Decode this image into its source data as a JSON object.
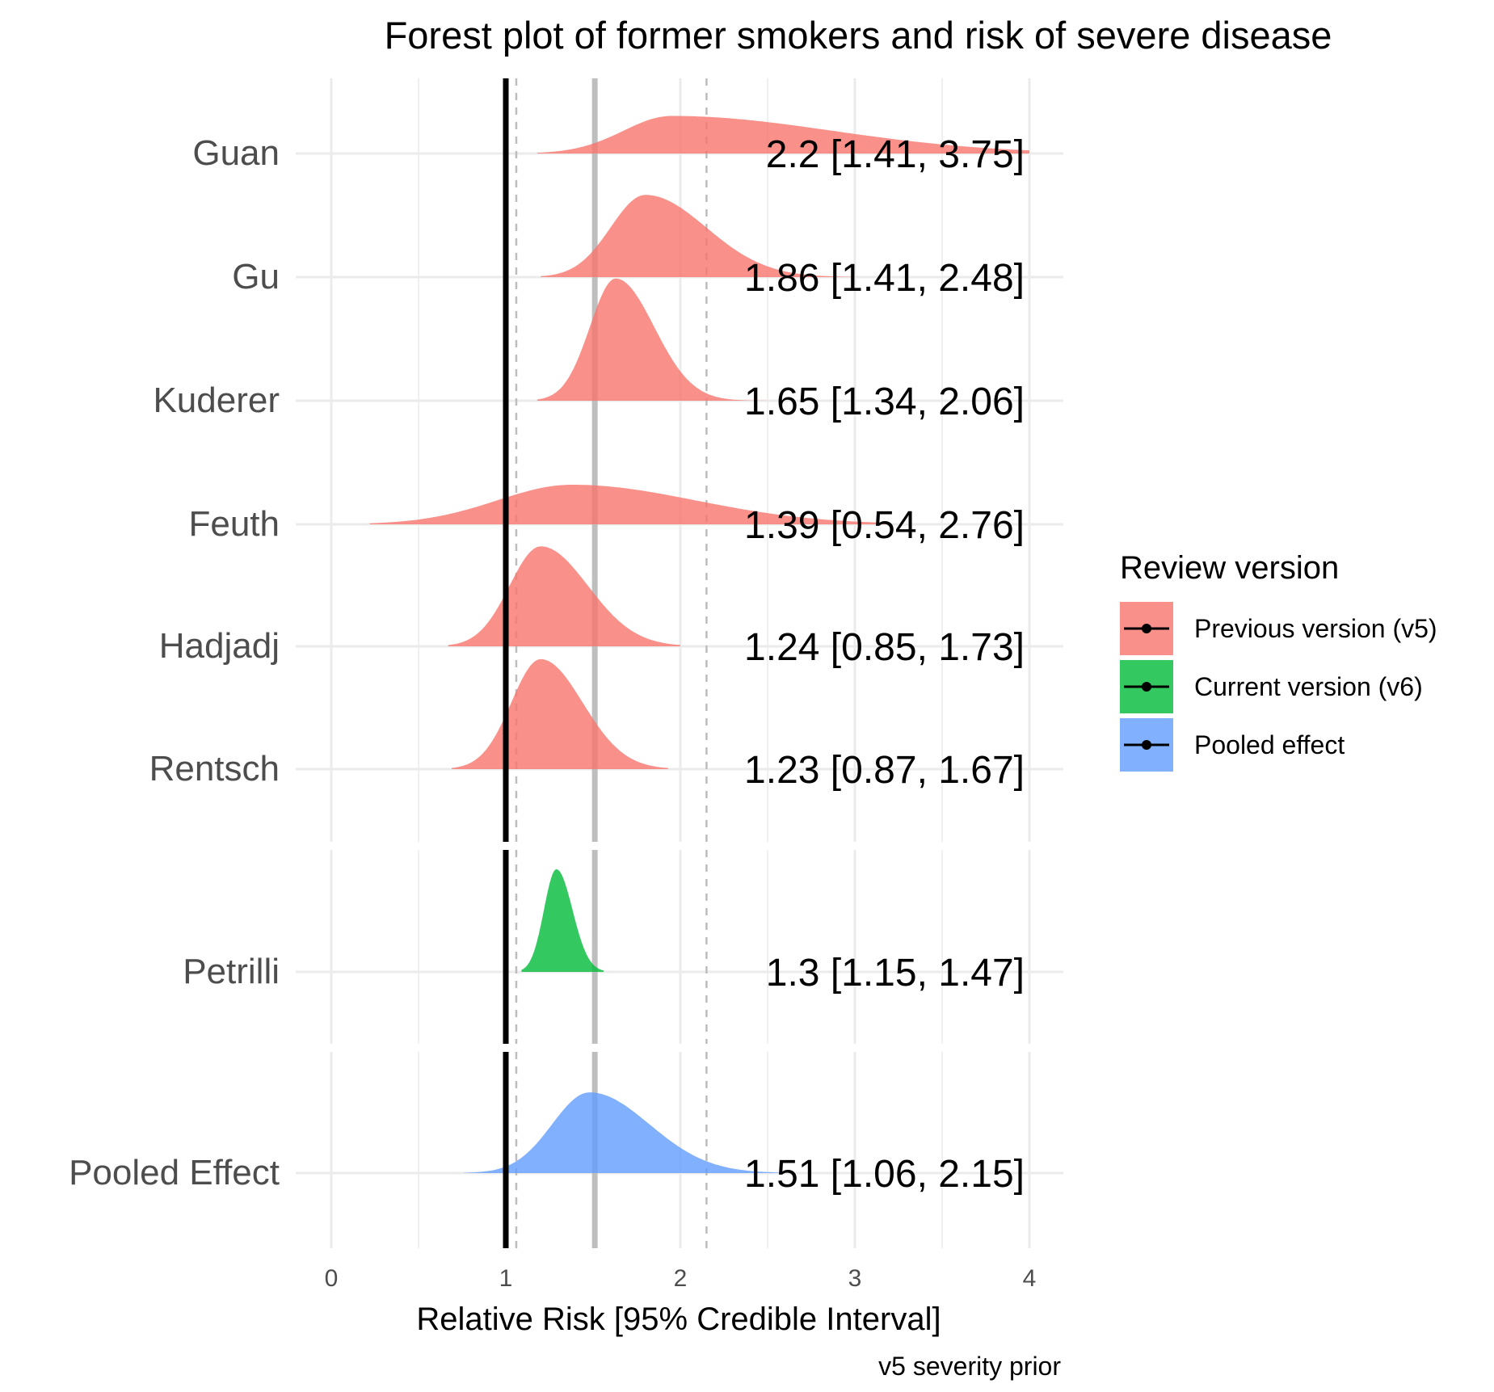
{
  "chart_data": {
    "type": "ridgeline-forest",
    "title": "Forest plot of former smokers and risk of severe disease",
    "xlabel": "Relative Risk [95% Credible Interval]",
    "caption": "v5 severity prior",
    "xlim": [
      0,
      4
    ],
    "x_ticks": [
      0,
      1,
      2,
      3,
      4
    ],
    "grid": true,
    "reference_lines": {
      "null_effect": 1,
      "pooled_estimate": 1.51,
      "pooled_interval": [
        1.06,
        2.15
      ]
    },
    "legend": {
      "title": "Review version",
      "position": "right",
      "items": [
        {
          "label": "Previous version (v5)",
          "color": "#F8766D"
        },
        {
          "label": "Current version (v6)",
          "color": "#00BA38"
        },
        {
          "label": "Pooled effect",
          "color": "#619CFF"
        }
      ]
    },
    "studies": [
      {
        "name": "Guan",
        "group": "Previous version (v5)",
        "estimate": 2.2,
        "lower": 1.41,
        "upper": 3.75,
        "label": "2.2 [1.41, 3.75]",
        "mode": 1.95,
        "range": [
          1.18,
          4.0
        ]
      },
      {
        "name": "Gu",
        "group": "Previous version (v5)",
        "estimate": 1.86,
        "lower": 1.41,
        "upper": 2.48,
        "label": "1.86 [1.41, 2.48]",
        "mode": 1.8,
        "range": [
          1.2,
          3.0
        ]
      },
      {
        "name": "Kuderer",
        "group": "Previous version (v5)",
        "estimate": 1.65,
        "lower": 1.34,
        "upper": 2.06,
        "label": "1.65 [1.34, 2.06]",
        "mode": 1.63,
        "range": [
          1.18,
          2.5
        ]
      },
      {
        "name": "Feuth",
        "group": "Previous version (v5)",
        "estimate": 1.39,
        "lower": 0.54,
        "upper": 2.76,
        "label": "1.39 [0.54, 2.76]",
        "mode": 1.38,
        "range": [
          0.22,
          3.2
        ]
      },
      {
        "name": "Hadjadj",
        "group": "Previous version (v5)",
        "estimate": 1.24,
        "lower": 0.85,
        "upper": 1.73,
        "label": "1.24 [0.85, 1.73]",
        "mode": 1.2,
        "range": [
          0.67,
          2.0
        ]
      },
      {
        "name": "Rentsch",
        "group": "Previous version (v5)",
        "estimate": 1.23,
        "lower": 0.87,
        "upper": 1.67,
        "label": "1.23 [0.87, 1.67]",
        "mode": 1.2,
        "range": [
          0.69,
          1.93
        ]
      },
      {
        "name": "Petrilli",
        "group": "Current version (v6)",
        "estimate": 1.3,
        "lower": 1.15,
        "upper": 1.47,
        "label": "1.3 [1.15, 1.47]",
        "mode": 1.29,
        "range": [
          1.09,
          1.56
        ]
      },
      {
        "name": "Pooled Effect",
        "group": "Pooled effect",
        "estimate": 1.51,
        "lower": 1.06,
        "upper": 2.15,
        "label": "1.51 [1.06, 2.15]",
        "mode": 1.48,
        "range": [
          0.76,
          2.6
        ]
      }
    ],
    "panels": [
      {
        "id": "previous",
        "rows": [
          "Guan",
          "Gu",
          "Kuderer",
          "Feuth",
          "Hadjadj",
          "Rentsch"
        ]
      },
      {
        "id": "current",
        "rows": [
          "Petrilli"
        ]
      },
      {
        "id": "pooled",
        "rows": [
          "Pooled Effect"
        ]
      }
    ]
  }
}
